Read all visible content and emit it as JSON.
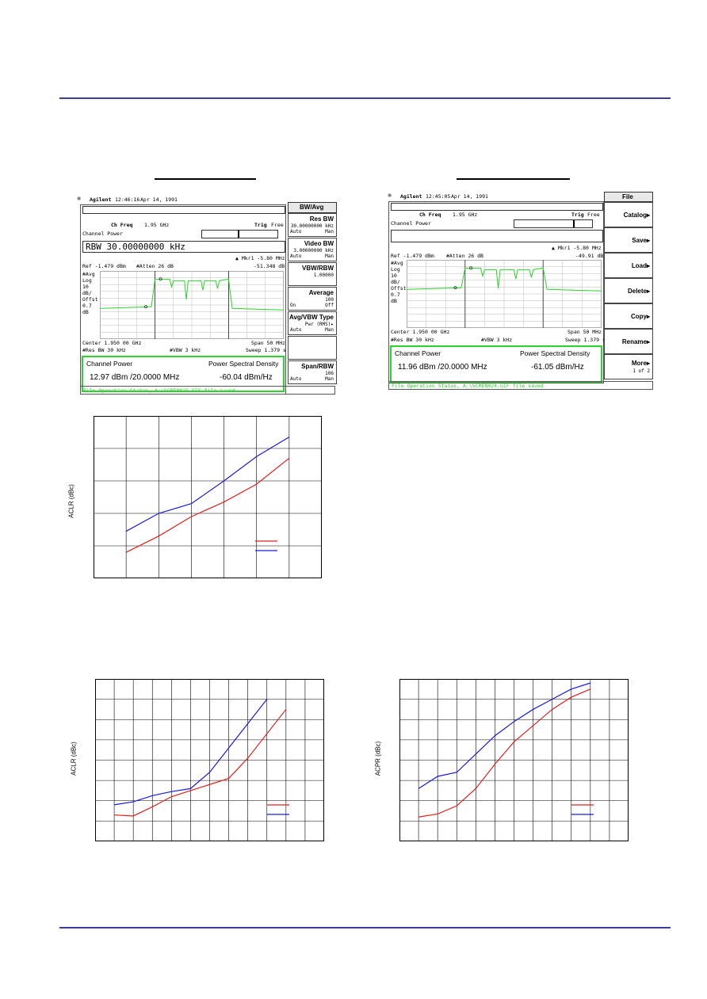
{
  "page": {
    "colors": {
      "rule": "#3d3d9a",
      "trace_green": "#2bd42b",
      "red_series": "#e02020",
      "blue_series": "#1a1adc"
    }
  },
  "sa_left": {
    "brand": "Agilent",
    "time": "12:46:16",
    "date": "Apr 14, 1991",
    "menu_title": "BW/Avg",
    "ch_freq_label": "Ch Freq",
    "ch_freq_value": "1.95 GHz",
    "trig_label": "Trig",
    "trig_value": "Free",
    "measurement": "Channel Power",
    "entry_line": "RBW 30.00000000 kHz",
    "marker": "▲ Mkr1  -5.80 MHz",
    "marker_value": "-51.348 dB",
    "ref": "Ref -1.479 dBm",
    "atten": "#Atten 26 dB",
    "left_labels": [
      "#Avg",
      "Log",
      "10",
      "dB/",
      "Offst",
      "0.7",
      "dB"
    ],
    "center": "Center 1.950 00 GHz",
    "span": "Span 50 MHz",
    "res_bw": "#Res BW 30 kHz",
    "vbw": "#VBW 3 kHz",
    "sweep": "Sweep 1.379 s",
    "result_title": "Channel Power",
    "result_psd_title": "Power Spectral Density",
    "result_value": "12.97 dBm /20.0000 MHz",
    "result_psd": "-60.04 dBm/Hz",
    "status": "File Operation Status, A:\\SCREN025.GIF file saved",
    "softkeys": [
      {
        "label": "Res BW",
        "sub1": "30.00000000 kHz",
        "sub2a": "Auto",
        "sub2b": "Man"
      },
      {
        "label": "Video BW",
        "sub1": "3.00000000 kHz",
        "sub2a": "Auto",
        "sub2b": "Man"
      },
      {
        "label": "VBW/RBW",
        "sub1": "1.00000",
        "sub2a": "",
        "sub2b": ""
      },
      {
        "label": "Average",
        "sub1": "100",
        "sub2a": "On",
        "sub2b": "Off"
      },
      {
        "label": "Avg/VBW Type",
        "sub1": "Pwr (RMS)▸",
        "sub2a": "Auto",
        "sub2b": "Man"
      },
      {
        "label": "",
        "sub1": "",
        "sub2a": "",
        "sub2b": ""
      },
      {
        "label": "Span/RBW",
        "sub1": "106",
        "sub2a": "Auto",
        "sub2b": "Man"
      }
    ]
  },
  "sa_right": {
    "brand": "Agilent",
    "time": "12:45:05",
    "date": "Apr 14, 1991",
    "menu_title": "File",
    "ch_freq_label": "Ch Freq",
    "ch_freq_value": "1.95 GHz",
    "trig_label": "Trig",
    "trig_value": "Free",
    "measurement": "Channel Power",
    "marker": "▲ Mkr1  -5.80 MHz",
    "marker_value": "-49.91 dB",
    "ref": "Ref -1.479 dBm",
    "atten": "#Atten 26 dB",
    "left_labels": [
      "#Avg",
      "Log",
      "10",
      "dB/",
      "Offst",
      "0.7",
      "dB"
    ],
    "center": "Center 1.950 00 GHz",
    "span": "Span 50 MHz",
    "res_bw": "#Res BW 30 kHz",
    "vbw": "#VBW 3 kHz",
    "sweep": "Sweep 1.379 s",
    "result_title": "Channel Power",
    "result_psd_title": "Power Spectral Density",
    "result_value": "11.96 dBm /20.0000 MHz",
    "result_psd": "-61.05 dBm/Hz",
    "status": "File Operation Status, A:\\SCREN024.GIF file saved",
    "softkeys": [
      {
        "label": "Catalog",
        "sub1": ""
      },
      {
        "label": "Save",
        "sub1": ""
      },
      {
        "label": "Load",
        "sub1": ""
      },
      {
        "label": "Delete",
        "sub1": ""
      },
      {
        "label": "Copy",
        "sub1": ""
      },
      {
        "label": "Rename",
        "sub1": ""
      },
      {
        "label": "More",
        "sub1": "1 of 2"
      }
    ]
  },
  "chart_data": [
    {
      "type": "line",
      "ylabel": "ACLR (dBc)",
      "x": [
        0,
        1,
        2,
        3,
        4,
        5
      ],
      "xlim": [
        -1,
        6
      ],
      "ylim": [
        0,
        10
      ],
      "grid": true,
      "legend_position": "bottom-right",
      "series": [
        {
          "color": "#e02020",
          "values": [
            1.6,
            2.6,
            3.8,
            4.7,
            5.8,
            7.4
          ]
        },
        {
          "color": "#1a1adc",
          "values": [
            2.9,
            4.0,
            4.6,
            6.0,
            7.5,
            8.7
          ]
        }
      ]
    },
    {
      "type": "line",
      "ylabel": "ACLR (dBc)",
      "x": [
        0,
        1,
        2,
        3,
        4,
        5,
        6,
        7,
        8,
        9,
        10
      ],
      "xlim": [
        -1,
        11
      ],
      "ylim": [
        0,
        8
      ],
      "grid": true,
      "legend_position": "bottom-right",
      "series": [
        {
          "color": "#e02020",
          "values": [
            1.3,
            1.25,
            1.7,
            2.2,
            2.5,
            2.8,
            3.1,
            4.1,
            5.3,
            6.5,
            null
          ]
        },
        {
          "color": "#1a1adc",
          "values": [
            1.8,
            1.95,
            2.25,
            2.45,
            2.6,
            3.4,
            4.6,
            5.8,
            7.0,
            null,
            null
          ]
        }
      ]
    },
    {
      "type": "line",
      "ylabel": "ACPR (dBc)",
      "x": [
        0,
        1,
        2,
        3,
        4,
        5,
        6,
        7,
        8,
        9,
        10
      ],
      "xlim": [
        -1,
        11
      ],
      "ylim": [
        0,
        8
      ],
      "grid": true,
      "legend_position": "bottom-right",
      "series": [
        {
          "color": "#e02020",
          "values": [
            1.2,
            1.35,
            1.75,
            2.6,
            3.8,
            4.9,
            5.7,
            6.5,
            7.1,
            7.5,
            null
          ]
        },
        {
          "color": "#1a1adc",
          "values": [
            2.6,
            3.2,
            3.4,
            4.3,
            5.2,
            5.9,
            6.5,
            7.0,
            7.5,
            7.8,
            null
          ]
        }
      ]
    }
  ]
}
